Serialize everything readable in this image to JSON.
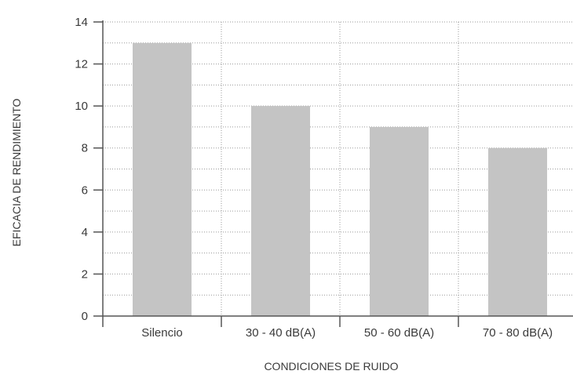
{
  "chart_data": {
    "type": "bar",
    "title": "",
    "xlabel": "CONDICIONES DE RUIDO",
    "ylabel": "EFICACIA DE RENDIMIENTO",
    "categories": [
      "Silencio",
      "30 - 40 dB(A)",
      "50 - 60 dB(A)",
      "70 - 80 dB(A)"
    ],
    "values": [
      13,
      10,
      9,
      8
    ],
    "ylim": [
      0,
      14
    ],
    "yticks": [
      0,
      2,
      4,
      6,
      8,
      10,
      12,
      14
    ],
    "y_minor_step": 1,
    "grid": true,
    "legend": "none",
    "colors": {
      "bar": "#c4c4c4",
      "axis": "#555555",
      "grid": "#9a9a9a",
      "text": "#3a3a3a"
    }
  }
}
